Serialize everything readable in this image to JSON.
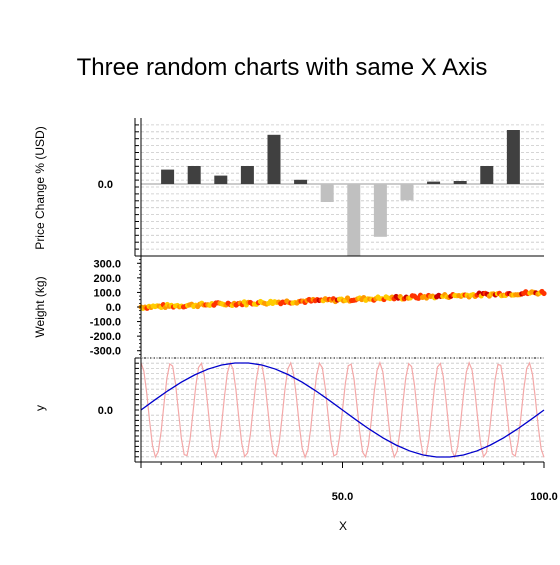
{
  "chart_data": {
    "type": "multi-panel",
    "title": "Three random charts with same X Axis",
    "x_axis": {
      "label": "X",
      "range": [
        0,
        100
      ],
      "tick_labels": [
        "50.0",
        "100.0"
      ],
      "tick_values": [
        50,
        100
      ]
    },
    "panels": [
      {
        "type": "bar",
        "ylabel": "Price Change % (USD)",
        "yrange": [
          -1.2,
          1.1
        ],
        "tick_labels": [
          "0.0"
        ],
        "tick_values": [
          0
        ],
        "grid": true,
        "positive_color": "#404040",
        "negative_color": "#c0c0c0",
        "x": [
          6.6,
          13.2,
          19.8,
          26.4,
          33.0,
          39.6,
          46.2,
          52.8,
          59.4,
          66.0,
          72.6,
          79.2,
          85.8,
          92.4
        ],
        "values": [
          0.24,
          0.3,
          0.14,
          0.3,
          0.82,
          0.07,
          -0.3,
          -1.2,
          -0.88,
          -0.27,
          0.04,
          0.05,
          0.3,
          0.9
        ]
      },
      {
        "type": "scatter",
        "ylabel": "Weight (kg)",
        "yrange": [
          -350,
          350
        ],
        "tick_labels": [
          "300.0",
          "200.0",
          "100.0",
          "0.0",
          "-100.0",
          "-200.0",
          "-300.0"
        ],
        "tick_values": [
          300,
          200,
          100,
          0,
          -100,
          -200,
          -300
        ],
        "colors": [
          "#ffcc00",
          "#ff9900",
          "#ff3300",
          "#cc0000"
        ],
        "trend": {
          "start": [
            0,
            0
          ],
          "end": [
            100,
            100
          ],
          "spread": 12
        }
      },
      {
        "type": "line",
        "ylabel": "y",
        "yrange": [
          -1.1,
          1.1
        ],
        "tick_labels": [
          "0.0"
        ],
        "tick_values": [
          0
        ],
        "grid": true,
        "series": [
          {
            "color": "#f4a8a8",
            "amplitude": 1.0,
            "cycles": 13.5,
            "phase": 1.5708
          },
          {
            "color": "#0000cc",
            "amplitude": 1.0,
            "cycles": 1,
            "phase": 0
          }
        ]
      }
    ]
  }
}
